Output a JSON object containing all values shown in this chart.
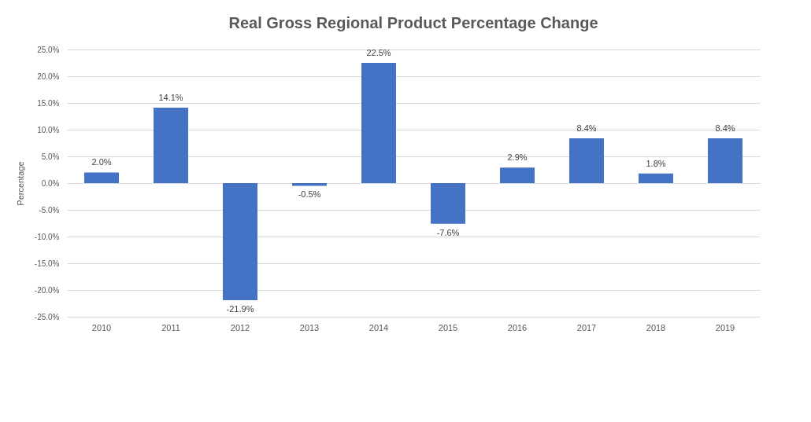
{
  "chart_data": {
    "type": "bar",
    "title": "Real Gross Regional Product Percentage Change",
    "ylabel": "Percentage",
    "categories": [
      "2010",
      "2011",
      "2012",
      "2013",
      "2014",
      "2015",
      "2016",
      "2017",
      "2018",
      "2019"
    ],
    "values": [
      2.0,
      14.1,
      -21.9,
      -0.5,
      22.5,
      -7.6,
      2.9,
      8.4,
      1.8,
      8.4
    ],
    "value_labels": [
      "2.0%",
      "14.1%",
      "-21.9%",
      "-0.5%",
      "22.5%",
      "-7.6%",
      "2.9%",
      "8.4%",
      "1.8%",
      "8.4%"
    ],
    "color": "#4472c4",
    "ylim": [
      -25,
      25
    ],
    "yticks": [
      {
        "value": -25,
        "label": "-25.0%"
      },
      {
        "value": -20,
        "label": "-20.0%"
      },
      {
        "value": -15,
        "label": "-15.0%"
      },
      {
        "value": -10,
        "label": "-10.0%"
      },
      {
        "value": -5,
        "label": "-5.0%"
      },
      {
        "value": 0,
        "label": "0.0%"
      },
      {
        "value": 5,
        "label": "5.0%"
      },
      {
        "value": 10,
        "label": "10.0%"
      },
      {
        "value": 15,
        "label": "15.0%"
      },
      {
        "value": 20,
        "label": "20.0%"
      },
      {
        "value": 25,
        "label": "25.0%"
      }
    ],
    "grid": "y"
  }
}
